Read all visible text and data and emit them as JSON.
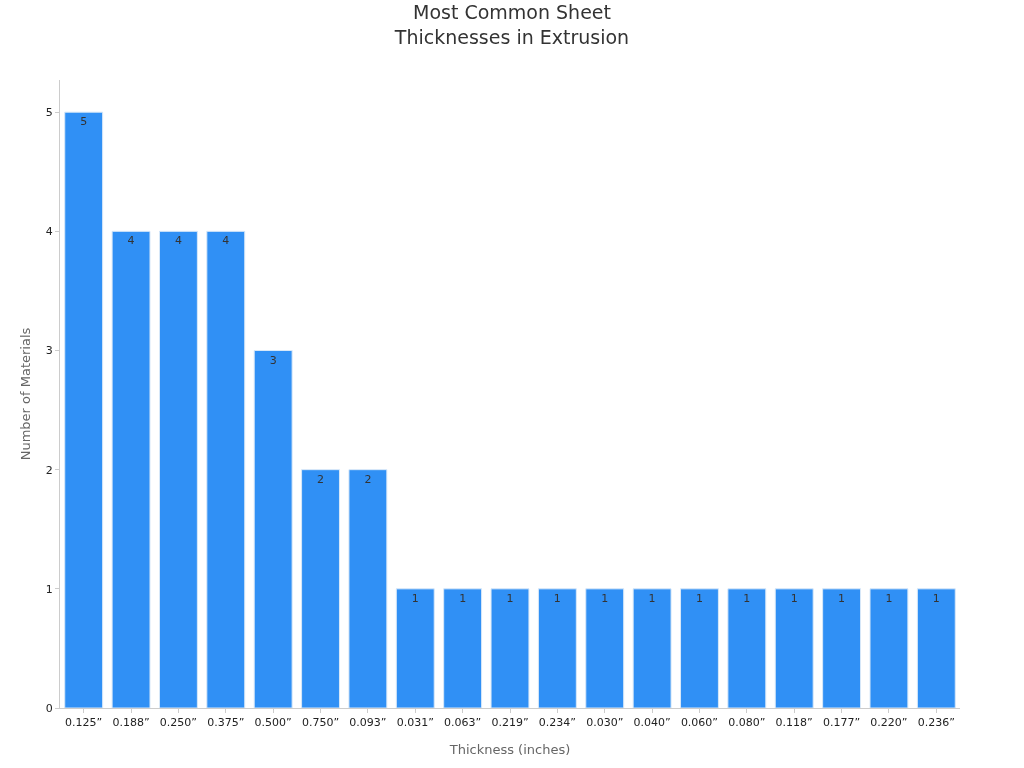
{
  "chart_data": {
    "type": "bar",
    "title": "Most Common Sheet\nThicknesses in Extrusion",
    "xlabel": "Thickness (inches)",
    "ylabel": "Number of Materials",
    "categories": [
      "0.125”",
      "0.188”",
      "0.250”",
      "0.375”",
      "0.500”",
      "0.750”",
      "0.093”",
      "0.031”",
      "0.063”",
      "0.219”",
      "0.234”",
      "0.030”",
      "0.040”",
      "0.060”",
      "0.080”",
      "0.118”",
      "0.177”",
      "0.220”",
      "0.236”"
    ],
    "values": [
      5,
      4,
      4,
      4,
      3,
      2,
      2,
      1,
      1,
      1,
      1,
      1,
      1,
      1,
      1,
      1,
      1,
      1,
      1
    ],
    "color": "#3090f5",
    "ylim": [
      0,
      5.27
    ],
    "yticks": [
      0,
      1,
      2,
      3,
      4,
      5
    ],
    "grid": false,
    "data_labels": true
  }
}
